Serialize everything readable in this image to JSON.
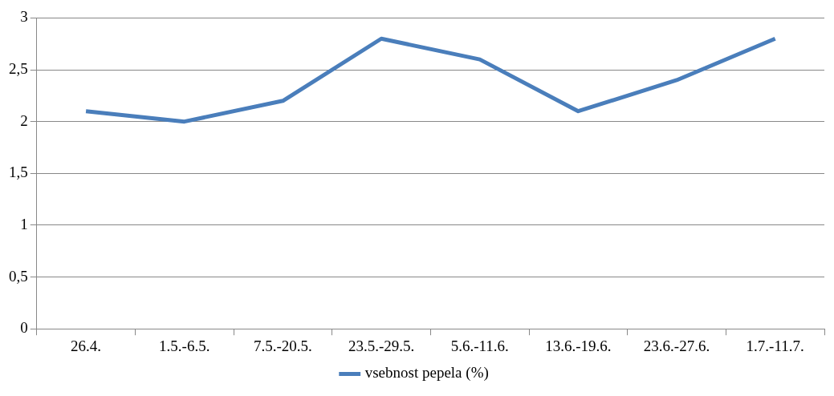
{
  "chart_data": {
    "type": "line",
    "categories": [
      "26.4.",
      "1.5.-6.5.",
      "7.5.-20.5.",
      "23.5.-29.5.",
      "5.6.-11.6.",
      "13.6.-19.6.",
      "23.6.-27.6.",
      "1.7.-11.7."
    ],
    "series": [
      {
        "name": "vsebnost pepela (%)",
        "color": "#4a7ebb",
        "values": [
          2.1,
          2.0,
          2.2,
          2.8,
          2.6,
          2.1,
          2.4,
          2.8
        ]
      }
    ],
    "ylim": [
      0,
      3
    ],
    "yticks": [
      0,
      {
        "value": 0.5,
        "label": "0,5"
      },
      1,
      {
        "value": 1.5,
        "label": "1,5"
      },
      2,
      {
        "value": 2.5,
        "label": "2,5"
      },
      3
    ],
    "grid": "y",
    "legend": "bottom",
    "marker": "none",
    "line_style": "solid"
  }
}
